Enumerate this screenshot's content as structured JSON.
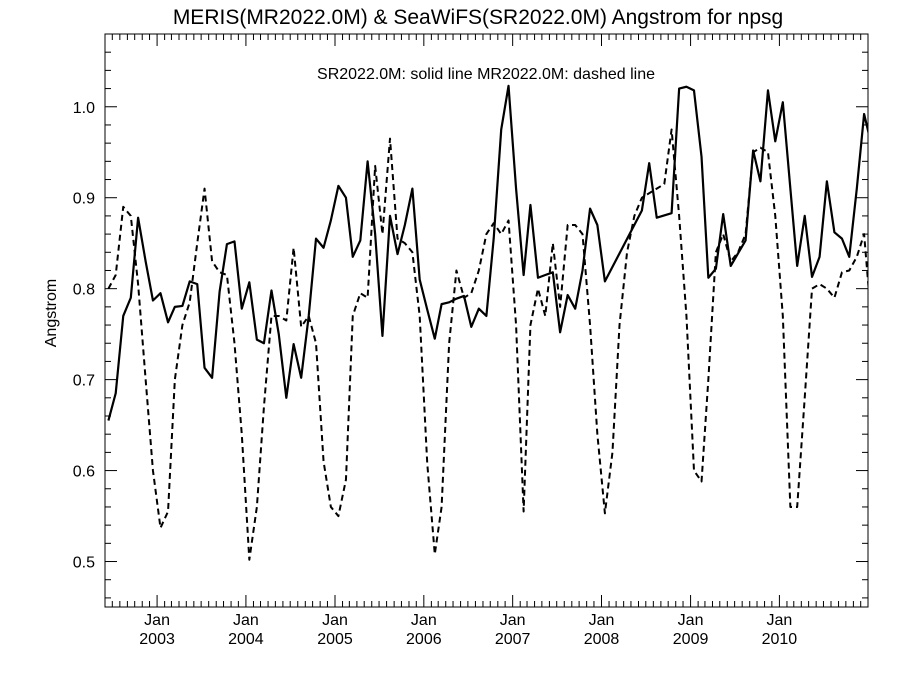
{
  "chart_data": {
    "type": "line",
    "title": "MERIS(MR2022.0M) & SeaWiFS(SR2022.0M)  Angstrom for npsg",
    "ylabel": "Angstrom",
    "xlabel": "",
    "legend_note": "SR2022.0M: solid line   MR2022.0M: dashed line",
    "legend_placement": "top-center",
    "grid": false,
    "xlim": [
      "2002-06-01",
      "2010-12-31"
    ],
    "ylim": [
      0.45,
      1.08
    ],
    "y_ticks": [
      {
        "value": 0.5,
        "label": "0.5"
      },
      {
        "value": 0.6,
        "label": "0.6"
      },
      {
        "value": 0.7,
        "label": "0.7"
      },
      {
        "value": 0.8,
        "label": "0.8"
      },
      {
        "value": 0.9,
        "label": "0.9"
      },
      {
        "value": 1.0,
        "label": "1.0"
      }
    ],
    "x_ticks": [
      {
        "date": "2003-01-01",
        "month": "Jan",
        "year": "2003"
      },
      {
        "date": "2004-01-01",
        "month": "Jan",
        "year": "2004"
      },
      {
        "date": "2005-01-01",
        "month": "Jan",
        "year": "2005"
      },
      {
        "date": "2006-01-01",
        "month": "Jan",
        "year": "2006"
      },
      {
        "date": "2007-01-01",
        "month": "Jan",
        "year": "2007"
      },
      {
        "date": "2008-01-01",
        "month": "Jan",
        "year": "2008"
      },
      {
        "date": "2009-01-01",
        "month": "Jan",
        "year": "2009"
      },
      {
        "date": "2010-01-01",
        "month": "Jan",
        "year": "2010"
      }
    ],
    "series": [
      {
        "name": "SR2022.0M",
        "style": "solid",
        "color": "#000000",
        "points": [
          [
            "2002-06",
            0.655
          ],
          [
            "2002-07",
            0.685
          ],
          [
            "2002-08",
            0.77
          ],
          [
            "2002-09",
            0.79
          ],
          [
            "2002-10",
            0.878
          ],
          [
            "2002-11",
            0.83
          ],
          [
            "2002-12",
            0.787
          ],
          [
            "2003-01",
            0.795
          ],
          [
            "2003-02",
            0.763
          ],
          [
            "2003-03",
            0.78
          ],
          [
            "2003-04",
            0.781
          ],
          [
            "2003-05",
            0.808
          ],
          [
            "2003-06",
            0.805
          ],
          [
            "2003-07",
            0.713
          ],
          [
            "2003-08",
            0.702
          ],
          [
            "2003-09",
            0.797
          ],
          [
            "2003-10",
            0.849
          ],
          [
            "2003-11",
            0.852
          ],
          [
            "2003-12",
            0.778
          ],
          [
            "2004-01",
            0.807
          ],
          [
            "2004-02",
            0.744
          ],
          [
            "2004-03",
            0.74
          ],
          [
            "2004-04",
            0.798
          ],
          [
            "2004-05",
            0.75
          ],
          [
            "2004-06",
            0.68
          ],
          [
            "2004-07",
            0.739
          ],
          [
            "2004-08",
            0.702
          ],
          [
            "2004-09",
            0.77
          ],
          [
            "2004-10",
            0.855
          ],
          [
            "2004-11",
            0.845
          ],
          [
            "2004-12",
            0.875
          ],
          [
            "2005-01",
            0.913
          ],
          [
            "2005-02",
            0.9
          ],
          [
            "2005-03",
            0.835
          ],
          [
            "2005-04",
            0.853
          ],
          [
            "2005-05",
            0.94
          ],
          [
            "2005-06",
            0.86
          ],
          [
            "2005-07",
            0.748
          ],
          [
            "2005-08",
            0.88
          ],
          [
            "2005-09",
            0.838
          ],
          [
            "2005-10",
            0.87
          ],
          [
            "2005-11",
            0.91
          ],
          [
            "2005-12",
            0.81
          ],
          [
            "2006-01",
            0.777
          ],
          [
            "2006-02",
            0.745
          ],
          [
            "2006-03",
            0.783
          ],
          [
            "2006-04",
            0.785
          ],
          [
            "2006-05",
            0.789
          ],
          [
            "2006-06",
            0.792
          ],
          [
            "2006-07",
            0.758
          ],
          [
            "2006-08",
            0.778
          ],
          [
            "2006-09",
            0.77
          ],
          [
            "2006-10",
            0.855
          ],
          [
            "2006-11",
            0.975
          ],
          [
            "2006-12",
            1.023
          ],
          [
            "2007-01",
            0.91
          ],
          [
            "2007-02",
            0.815
          ],
          [
            "2007-03",
            0.892
          ],
          [
            "2007-04",
            0.812
          ],
          [
            "2007-05",
            0.815
          ],
          [
            "2007-06",
            0.818
          ],
          [
            "2007-07",
            0.752
          ],
          [
            "2007-08",
            0.793
          ],
          [
            "2007-09",
            0.778
          ],
          [
            "2007-10",
            0.82
          ],
          [
            "2007-11",
            0.888
          ],
          [
            "2007-12",
            0.87
          ],
          [
            "2008-01",
            0.808
          ],
          [
            "2008-06",
            0.886
          ],
          [
            "2008-07",
            0.938
          ],
          [
            "2008-08",
            0.878
          ],
          [
            "2008-10",
            0.883
          ],
          [
            "2008-11",
            1.02
          ],
          [
            "2008-12",
            1.022
          ],
          [
            "2009-01",
            1.018
          ],
          [
            "2009-02",
            0.945
          ],
          [
            "2009-03",
            0.812
          ],
          [
            "2009-04",
            0.822
          ],
          [
            "2009-05",
            0.882
          ],
          [
            "2009-06",
            0.825
          ],
          [
            "2009-08",
            0.853
          ],
          [
            "2009-09",
            0.952
          ],
          [
            "2009-10",
            0.918
          ],
          [
            "2009-11",
            1.018
          ],
          [
            "2009-12",
            0.962
          ],
          [
            "2010-01",
            1.005
          ],
          [
            "2010-02",
            0.91
          ],
          [
            "2010-03",
            0.825
          ],
          [
            "2010-04",
            0.88
          ],
          [
            "2010-05",
            0.813
          ],
          [
            "2010-06",
            0.835
          ],
          [
            "2010-07",
            0.918
          ],
          [
            "2010-08",
            0.862
          ],
          [
            "2010-09",
            0.855
          ],
          [
            "2010-10",
            0.835
          ],
          [
            "2010-11",
            0.91
          ],
          [
            "2010-12",
            0.992
          ],
          [
            "2011-01",
            0.957
          ],
          [
            "2011-02",
            0.97
          ]
        ]
      },
      {
        "name": "MR2022.0M",
        "style": "dashed",
        "color": "#000000",
        "points": [
          [
            "2002-06",
            0.8
          ],
          [
            "2002-07",
            0.815
          ],
          [
            "2002-08",
            0.89
          ],
          [
            "2002-09",
            0.88
          ],
          [
            "2002-10",
            0.805
          ],
          [
            "2002-11",
            0.7
          ],
          [
            "2002-12",
            0.6
          ],
          [
            "2003-01",
            0.537
          ],
          [
            "2003-02",
            0.555
          ],
          [
            "2003-03",
            0.7
          ],
          [
            "2003-04",
            0.76
          ],
          [
            "2003-05",
            0.785
          ],
          [
            "2003-06",
            0.85
          ],
          [
            "2003-07",
            0.91
          ],
          [
            "2003-08",
            0.83
          ],
          [
            "2003-09",
            0.818
          ],
          [
            "2003-10",
            0.815
          ],
          [
            "2003-11",
            0.74
          ],
          [
            "2003-12",
            0.64
          ],
          [
            "2004-01",
            0.502
          ],
          [
            "2004-02",
            0.56
          ],
          [
            "2004-03",
            0.67
          ],
          [
            "2004-04",
            0.77
          ],
          [
            "2004-05",
            0.77
          ],
          [
            "2004-06",
            0.765
          ],
          [
            "2004-07",
            0.845
          ],
          [
            "2004-08",
            0.758
          ],
          [
            "2004-09",
            0.77
          ],
          [
            "2004-10",
            0.74
          ],
          [
            "2004-11",
            0.61
          ],
          [
            "2004-12",
            0.56
          ],
          [
            "2005-01",
            0.55
          ],
          [
            "2005-02",
            0.59
          ],
          [
            "2005-03",
            0.77
          ],
          [
            "2005-04",
            0.795
          ],
          [
            "2005-05",
            0.79
          ],
          [
            "2005-06",
            0.935
          ],
          [
            "2005-07",
            0.86
          ],
          [
            "2005-08",
            0.965
          ],
          [
            "2005-09",
            0.855
          ],
          [
            "2005-10",
            0.85
          ],
          [
            "2005-11",
            0.84
          ],
          [
            "2005-12",
            0.77
          ],
          [
            "2006-01",
            0.608
          ],
          [
            "2006-02",
            0.508
          ],
          [
            "2006-03",
            0.56
          ],
          [
            "2006-04",
            0.74
          ],
          [
            "2006-05",
            0.82
          ],
          [
            "2006-06",
            0.79
          ],
          [
            "2006-07",
            0.795
          ],
          [
            "2006-08",
            0.82
          ],
          [
            "2006-09",
            0.86
          ],
          [
            "2006-10",
            0.872
          ],
          [
            "2006-11",
            0.86
          ],
          [
            "2006-12",
            0.875
          ],
          [
            "2007-01",
            0.76
          ],
          [
            "2007-02",
            0.555
          ],
          [
            "2007-03",
            0.76
          ],
          [
            "2007-04",
            0.8
          ],
          [
            "2007-05",
            0.77
          ],
          [
            "2007-06",
            0.85
          ],
          [
            "2007-07",
            0.78
          ],
          [
            "2007-08",
            0.87
          ],
          [
            "2007-09",
            0.87
          ],
          [
            "2007-10",
            0.86
          ],
          [
            "2007-11",
            0.76
          ],
          [
            "2007-12",
            0.64
          ],
          [
            "2008-01",
            0.553
          ],
          [
            "2008-02",
            0.62
          ],
          [
            "2008-03",
            0.76
          ],
          [
            "2008-04",
            0.84
          ],
          [
            "2008-05",
            0.88
          ],
          [
            "2008-06",
            0.9
          ],
          [
            "2008-07",
            0.905
          ],
          [
            "2008-08",
            0.91
          ],
          [
            "2008-09",
            0.915
          ],
          [
            "2008-10",
            0.975
          ],
          [
            "2008-11",
            0.88
          ],
          [
            "2008-12",
            0.77
          ],
          [
            "2009-01",
            0.6
          ],
          [
            "2009-02",
            0.588
          ],
          [
            "2009-03",
            0.7
          ],
          [
            "2009-04",
            0.84
          ],
          [
            "2009-05",
            0.86
          ],
          [
            "2009-06",
            0.83
          ],
          [
            "2009-07",
            0.84
          ],
          [
            "2009-08",
            0.86
          ],
          [
            "2009-09",
            0.95
          ],
          [
            "2009-10",
            0.955
          ],
          [
            "2009-11",
            0.95
          ],
          [
            "2009-12",
            0.88
          ],
          [
            "2010-01",
            0.77
          ],
          [
            "2010-02",
            0.56
          ],
          [
            "2010-03",
            0.56
          ],
          [
            "2010-04",
            0.68
          ],
          [
            "2010-05",
            0.8
          ],
          [
            "2010-06",
            0.805
          ],
          [
            "2010-07",
            0.8
          ],
          [
            "2010-08",
            0.79
          ],
          [
            "2010-09",
            0.818
          ],
          [
            "2010-10",
            0.82
          ],
          [
            "2010-11",
            0.835
          ],
          [
            "2010-12",
            0.86
          ],
          [
            "2011-01",
            0.76
          ],
          [
            "2011-02",
            0.62
          ]
        ]
      }
    ]
  }
}
